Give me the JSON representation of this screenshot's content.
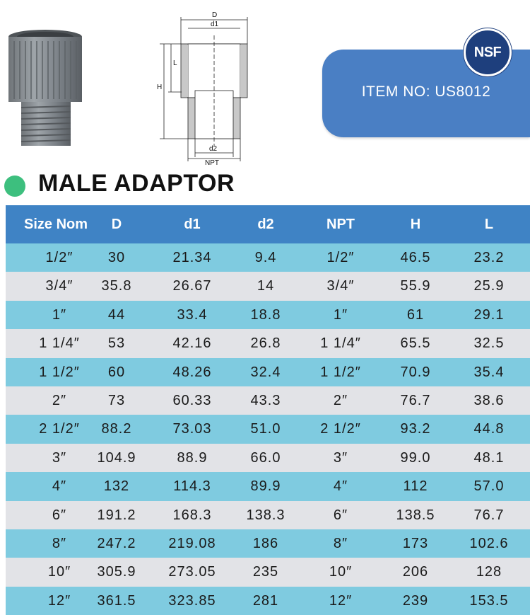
{
  "drawing_labels": {
    "D": "D",
    "d1": "d1",
    "L": "L",
    "H": "H",
    "d2": "d2",
    "NPT": "NPT"
  },
  "badge": "NSF",
  "item_label": "ITEM  NO: US8012",
  "title": "MALE ADAPTOR",
  "colors": {
    "header": "#3f83c5",
    "row_alt_1": "#7fcbe0",
    "row_alt_2": "#e2e3e7",
    "panel": "#4a7fc4",
    "bullet": "#3dbf7e"
  },
  "table": {
    "columns": [
      "Size Nom",
      "D",
      "d1",
      "d2",
      "NPT",
      "H",
      "L"
    ],
    "rows": [
      [
        "1/2″",
        "30",
        "21.34",
        "9.4",
        "1/2″",
        "46.5",
        "23.2"
      ],
      [
        "3/4″",
        "35.8",
        "26.67",
        "14",
        "3/4″",
        "55.9",
        "25.9"
      ],
      [
        "1″",
        "44",
        "33.4",
        "18.8",
        "1″",
        "61",
        "29.1"
      ],
      [
        "1 1/4″",
        "53",
        "42.16",
        "26.8",
        "1 1/4″",
        "65.5",
        "32.5"
      ],
      [
        "1 1/2″",
        "60",
        "48.26",
        "32.4",
        "1 1/2″",
        "70.9",
        "35.4"
      ],
      [
        "2″",
        "73",
        "60.33",
        "43.3",
        "2″",
        "76.7",
        "38.6"
      ],
      [
        "2 1/2″",
        "88.2",
        "73.03",
        "51.0",
        "2 1/2″",
        "93.2",
        "44.8"
      ],
      [
        "3″",
        "104.9",
        "88.9",
        "66.0",
        "3″",
        "99.0",
        "48.1"
      ],
      [
        "4″",
        "132",
        "114.3",
        "89.9",
        "4″",
        "112",
        "57.0"
      ],
      [
        "6″",
        "191.2",
        "168.3",
        "138.3",
        "6″",
        "138.5",
        "76.7"
      ],
      [
        "8″",
        "247.2",
        "219.08",
        "186",
        "8″",
        "173",
        "102.6"
      ],
      [
        "10″",
        "305.9",
        "273.05",
        "235",
        "10″",
        "206",
        "128"
      ],
      [
        "12″",
        "361.5",
        "323.85",
        "281",
        "12″",
        "239",
        "153.5"
      ]
    ]
  }
}
